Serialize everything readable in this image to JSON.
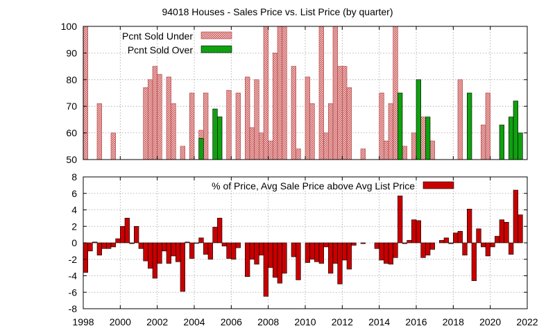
{
  "colors": {
    "under": "#f4c8c8",
    "under_hatch": "#c05050",
    "over": "#10a010",
    "avg": "#c80000",
    "grid": "#a0a0a0"
  },
  "chart_data": [
    {
      "type": "bar",
      "title": "94018 Houses - Sales Price vs. List Price (by quarter)",
      "ylim": [
        50,
        100
      ],
      "yticks": [
        "50",
        "60",
        "70",
        "80",
        "90",
        "100"
      ],
      "grid": true,
      "legend": "top-left",
      "series": [
        {
          "name": "Pcnt Sold Under",
          "points": [
            [
              1998.0,
              100
            ],
            [
              1998.75,
              71
            ],
            [
              1999.5,
              60
            ],
            [
              2001.25,
              77
            ],
            [
              2001.5,
              80
            ],
            [
              2001.75,
              85
            ],
            [
              2002.0,
              82
            ],
            [
              2002.5,
              81
            ],
            [
              2002.75,
              71
            ],
            [
              2003.25,
              55
            ],
            [
              2003.75,
              75
            ],
            [
              2004.25,
              61
            ],
            [
              2004.5,
              75
            ],
            [
              2005.25,
              66
            ],
            [
              2005.75,
              76
            ],
            [
              2006.25,
              75
            ],
            [
              2006.75,
              81
            ],
            [
              2007.0,
              62
            ],
            [
              2007.25,
              80
            ],
            [
              2007.5,
              60
            ],
            [
              2007.75,
              100
            ],
            [
              2008.0,
              57
            ],
            [
              2008.25,
              90
            ],
            [
              2008.5,
              100
            ],
            [
              2008.75,
              100
            ],
            [
              2009.25,
              85
            ],
            [
              2009.5,
              54
            ],
            [
              2010.0,
              81
            ],
            [
              2010.25,
              71
            ],
            [
              2010.75,
              100
            ],
            [
              2011.0,
              60
            ],
            [
              2011.25,
              71
            ],
            [
              2011.5,
              100
            ],
            [
              2011.75,
              85
            ],
            [
              2012.0,
              85
            ],
            [
              2012.25,
              77
            ],
            [
              2013.0,
              54
            ],
            [
              2014.0,
              75
            ],
            [
              2014.25,
              57
            ],
            [
              2014.5,
              71
            ],
            [
              2014.75,
              100
            ],
            [
              2015.25,
              55
            ],
            [
              2015.75,
              60
            ],
            [
              2016.25,
              66
            ],
            [
              2016.75,
              57
            ],
            [
              2018.25,
              80
            ],
            [
              2019.5,
              63
            ],
            [
              2019.75,
              75
            ]
          ]
        },
        {
          "name": "Pcnt Sold Over",
          "points": [
            [
              2004.25,
              58
            ],
            [
              2005.0,
              69
            ],
            [
              2005.25,
              66
            ],
            [
              2015.0,
              75
            ],
            [
              2016.0,
              80
            ],
            [
              2016.5,
              66
            ],
            [
              2018.75,
              75
            ],
            [
              2020.5,
              63
            ],
            [
              2021.0,
              66
            ],
            [
              2021.25,
              72
            ],
            [
              2021.5,
              60
            ]
          ]
        }
      ]
    },
    {
      "type": "bar",
      "ylim": [
        -8,
        8
      ],
      "yticks": [
        "-8",
        "-6",
        "-4",
        "-2",
        "0",
        "2",
        "4",
        "6",
        "8"
      ],
      "xlim": [
        1998,
        2022
      ],
      "xticks": [
        "1998",
        "2000",
        "2002",
        "2004",
        "2006",
        "2008",
        "2010",
        "2012",
        "2014",
        "2016",
        "2018",
        "2020",
        "2022"
      ],
      "grid": true,
      "legend": "top-center",
      "series": [
        {
          "name": "% of Price, Avg Sale Price above Avg List Price",
          "points": [
            [
              1998.0,
              -3.6
            ],
            [
              1998.25,
              -1.0
            ],
            [
              1998.5,
              0.1
            ],
            [
              1998.75,
              -1.5
            ],
            [
              1999.0,
              -0.7
            ],
            [
              1999.25,
              -0.7
            ],
            [
              1999.5,
              -0.5
            ],
            [
              1999.75,
              0.5
            ],
            [
              2000.0,
              2.0
            ],
            [
              2000.25,
              3.0
            ],
            [
              2000.5,
              -0.1
            ],
            [
              2000.75,
              2.0
            ],
            [
              2001.0,
              -0.7
            ],
            [
              2001.25,
              -2.2
            ],
            [
              2001.5,
              -3.1
            ],
            [
              2001.75,
              -4.3
            ],
            [
              2002.0,
              -2.5
            ],
            [
              2002.25,
              -1.0
            ],
            [
              2002.5,
              -2.5
            ],
            [
              2002.75,
              -1.6
            ],
            [
              2003.0,
              -2.3
            ],
            [
              2003.25,
              -5.9
            ],
            [
              2003.5,
              0.1
            ],
            [
              2003.75,
              -1.9
            ],
            [
              2004.0,
              0.0
            ],
            [
              2004.25,
              0.6
            ],
            [
              2004.5,
              -1.4
            ],
            [
              2004.75,
              -2.0
            ],
            [
              2005.0,
              1.9
            ],
            [
              2005.25,
              3.0
            ],
            [
              2005.5,
              -0.4
            ],
            [
              2005.75,
              -1.9
            ],
            [
              2006.0,
              -2.0
            ],
            [
              2006.25,
              -0.6
            ],
            [
              2006.75,
              -4.1
            ],
            [
              2007.0,
              -2.0
            ],
            [
              2007.25,
              -2.6
            ],
            [
              2007.5,
              -1.5
            ],
            [
              2007.75,
              -6.5
            ],
            [
              2008.0,
              -3.0
            ],
            [
              2008.25,
              -4.2
            ],
            [
              2008.5,
              -4.9
            ],
            [
              2008.75,
              -3.7
            ],
            [
              2009.25,
              -1.7
            ],
            [
              2009.5,
              -4.5
            ],
            [
              2010.0,
              -2.4
            ],
            [
              2010.25,
              -2.0
            ],
            [
              2010.5,
              -2.3
            ],
            [
              2010.75,
              -2.5
            ],
            [
              2011.0,
              -0.5
            ],
            [
              2011.25,
              -3.7
            ],
            [
              2011.5,
              -2.5
            ],
            [
              2011.75,
              -5.0
            ],
            [
              2012.0,
              -2.1
            ],
            [
              2012.25,
              -3.2
            ],
            [
              2012.5,
              -0.3
            ],
            [
              2013.0,
              -0.1
            ],
            [
              2013.75,
              -0.7
            ],
            [
              2014.0,
              -2.1
            ],
            [
              2014.25,
              -2.5
            ],
            [
              2014.5,
              -2.6
            ],
            [
              2014.75,
              -1.8
            ],
            [
              2015.0,
              5.7
            ],
            [
              2015.25,
              -0.1
            ],
            [
              2015.5,
              0.3
            ],
            [
              2015.75,
              2.8
            ],
            [
              2016.0,
              2.7
            ],
            [
              2016.25,
              -1.8
            ],
            [
              2016.5,
              -1.5
            ],
            [
              2016.75,
              -0.8
            ],
            [
              2017.25,
              0.3
            ],
            [
              2017.5,
              0.6
            ],
            [
              2017.75,
              -0.1
            ],
            [
              2018.0,
              1.2
            ],
            [
              2018.25,
              1.4
            ],
            [
              2018.5,
              -1.5
            ],
            [
              2018.75,
              4.1
            ],
            [
              2019.0,
              -4.6
            ],
            [
              2019.25,
              1.7
            ],
            [
              2019.5,
              -0.5
            ],
            [
              2019.75,
              -1.6
            ],
            [
              2020.0,
              -0.5
            ],
            [
              2020.25,
              0.8
            ],
            [
              2020.5,
              2.8
            ],
            [
              2020.75,
              2.5
            ],
            [
              2021.0,
              -1.4
            ],
            [
              2021.25,
              6.4
            ],
            [
              2021.5,
              3.4
            ]
          ]
        }
      ]
    }
  ]
}
